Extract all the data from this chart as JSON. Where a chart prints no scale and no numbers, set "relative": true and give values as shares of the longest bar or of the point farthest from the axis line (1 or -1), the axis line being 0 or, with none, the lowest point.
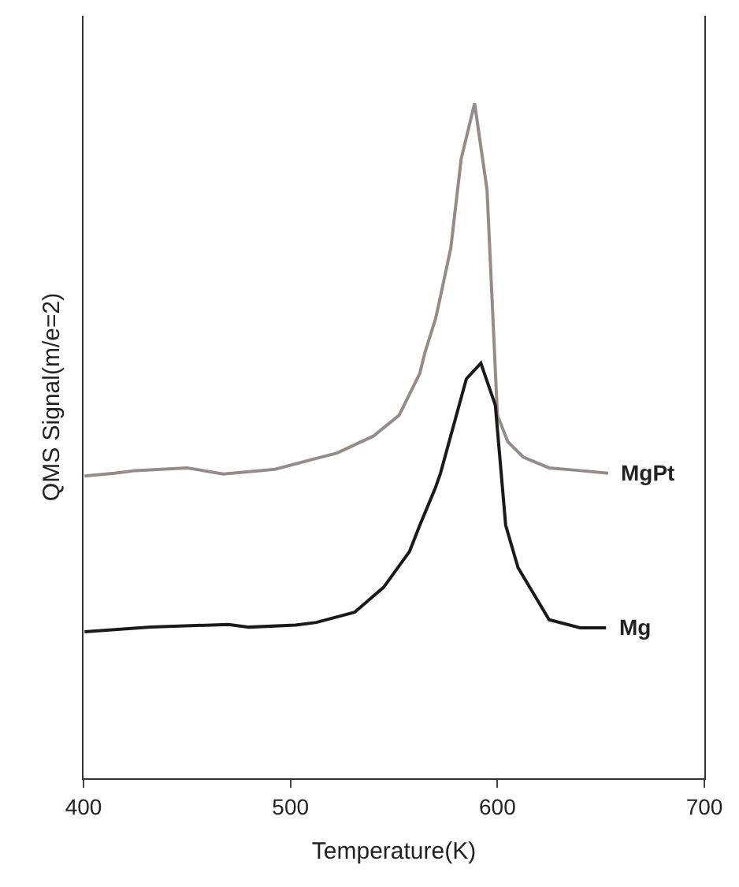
{
  "chart_data": {
    "type": "line",
    "relative": true,
    "xlabel": "Temperature(K)",
    "ylabel": "QMS Signal(m/e=2)",
    "xlim": [
      400,
      700
    ],
    "xticks": [
      400,
      500,
      600,
      700
    ],
    "legend": false,
    "marker": "none",
    "line_style": "solid",
    "series": [
      {
        "name": "MgPt",
        "color": "#958c8a",
        "x": [
          400.5,
          415,
          425,
          450,
          467.5,
          492.5,
          510,
          522.5,
          540,
          552.5,
          562.5,
          565,
          570,
          571,
          577.5,
          582.5,
          589,
          595,
          600,
          605,
          612.5,
          625,
          640,
          653.5
        ],
        "values": [
          0.448,
          0.452,
          0.456,
          0.46,
          0.451,
          0.458,
          0.472,
          0.482,
          0.507,
          0.538,
          0.6,
          0.631,
          0.68,
          0.693,
          0.786,
          0.918,
          1.0,
          0.872,
          0.538,
          0.499,
          0.476,
          0.46,
          0.456,
          0.452
        ]
      },
      {
        "name": "Mg",
        "color": "#1a1a1a",
        "x": [
          400.5,
          432.5,
          470,
          480,
          502.5,
          512.5,
          531,
          545,
          557.5,
          562.5,
          570,
          572.5,
          585,
          592,
          599,
          604,
          610,
          625,
          640,
          652.5
        ],
        "values": [
          0.217,
          0.224,
          0.228,
          0.224,
          0.227,
          0.231,
          0.246,
          0.283,
          0.336,
          0.375,
          0.43,
          0.452,
          0.592,
          0.615,
          0.553,
          0.375,
          0.312,
          0.235,
          0.223,
          0.223
        ]
      }
    ]
  }
}
